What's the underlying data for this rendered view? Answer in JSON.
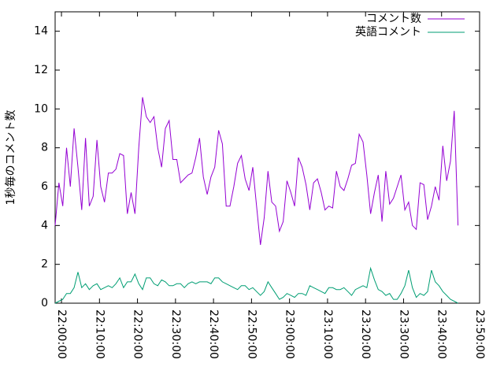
{
  "chart_data": {
    "type": "line",
    "y_label": "1秒毎のコメント数",
    "x": [
      "21:58:20",
      "21:59:20",
      "22:00:20",
      "22:01:20",
      "22:02:20",
      "22:03:20",
      "22:04:20",
      "22:05:20",
      "22:06:20",
      "22:07:20",
      "22:08:20",
      "22:09:20",
      "22:10:20",
      "22:11:20",
      "22:12:20",
      "22:13:20",
      "22:14:20",
      "22:15:20",
      "22:16:20",
      "22:17:20",
      "22:18:20",
      "22:19:20",
      "22:20:20",
      "22:21:20",
      "22:22:20",
      "22:23:20",
      "22:24:20",
      "22:25:20",
      "22:26:20",
      "22:27:20",
      "22:28:20",
      "22:29:20",
      "22:30:20",
      "22:31:20",
      "22:32:20",
      "22:33:20",
      "22:34:20",
      "22:35:20",
      "22:36:20",
      "22:37:20",
      "22:38:20",
      "22:39:20",
      "22:40:20",
      "22:41:20",
      "22:42:20",
      "22:43:20",
      "22:44:20",
      "22:45:20",
      "22:46:20",
      "22:47:20",
      "22:48:20",
      "22:49:20",
      "22:50:20",
      "22:51:20",
      "22:52:20",
      "22:53:20",
      "22:54:20",
      "22:55:20",
      "22:56:20",
      "22:57:20",
      "22:58:20",
      "22:59:20",
      "23:00:20",
      "23:01:20",
      "23:02:20",
      "23:03:20",
      "23:04:20",
      "23:05:20",
      "23:06:20",
      "23:07:20",
      "23:08:20",
      "23:09:20",
      "23:10:20",
      "23:11:20",
      "23:12:20",
      "23:13:20",
      "23:14:20",
      "23:15:20",
      "23:16:20",
      "23:17:20",
      "23:18:20",
      "23:19:20",
      "23:20:20",
      "23:21:20",
      "23:22:20",
      "23:23:20",
      "23:24:20",
      "23:25:20",
      "23:26:20",
      "23:27:20",
      "23:28:20",
      "23:29:20",
      "23:30:20",
      "23:31:20",
      "23:32:20",
      "23:33:20",
      "23:34:20",
      "23:35:20",
      "23:36:20",
      "23:37:20",
      "23:38:20",
      "23:39:20",
      "23:40:20",
      "23:41:20",
      "23:42:20",
      "23:43:20",
      "23:44:20"
    ],
    "series": [
      {
        "name": "コメント数",
        "color": "#9400d3",
        "values": [
          4,
          6.2,
          5,
          8,
          6,
          9,
          7,
          4.8,
          8.5,
          5,
          5.5,
          8.4,
          6,
          5.2,
          6.7,
          6.7,
          6.9,
          7.7,
          7.6,
          4.6,
          5.7,
          4.6,
          8,
          10.6,
          9.6,
          9.3,
          9.6,
          8,
          7,
          9,
          9.4,
          7.4,
          7.4,
          6.2,
          6.4,
          6.6,
          6.7,
          7.5,
          8.5,
          6.5,
          5.6,
          6.5,
          7,
          8.9,
          8.2,
          5,
          5,
          6,
          7.2,
          7.6,
          6.4,
          5.8,
          7,
          5,
          3,
          4.4,
          6.8,
          5.2,
          5,
          3.7,
          4.2,
          6.3,
          5.7,
          5,
          7.5,
          7,
          6.1,
          4.8,
          6.2,
          6.4,
          5.7,
          4.8,
          5,
          4.9,
          6.8,
          6,
          5.8,
          6.4,
          7.1,
          7.2,
          8.7,
          8.3,
          6.6,
          4.6,
          5.7,
          6.6,
          4.2,
          6.8,
          5.1,
          5.4,
          6,
          6.6,
          4.8,
          5.2,
          4,
          3.8,
          6.2,
          6.1,
          4.3,
          5,
          6,
          5.3,
          8.1,
          6.3,
          7.3,
          9.9,
          4
        ]
      },
      {
        "name": "英語コメント",
        "color": "#009e73",
        "values": [
          0,
          0.1,
          0.2,
          0.5,
          0.5,
          0.8,
          1.6,
          0.8,
          1,
          0.7,
          0.9,
          1,
          0.7,
          0.8,
          0.9,
          0.8,
          1,
          1.3,
          0.8,
          1.1,
          1.1,
          1.5,
          1,
          0.7,
          1.3,
          1.3,
          1,
          0.9,
          1.2,
          1.1,
          0.9,
          0.9,
          1,
          1,
          0.8,
          1,
          1.1,
          1,
          1.1,
          1.1,
          1.1,
          1,
          1.3,
          1.3,
          1.1,
          1,
          0.9,
          0.8,
          0.7,
          0.9,
          0.9,
          0.7,
          0.8,
          0.6,
          0.4,
          0.6,
          1.1,
          0.8,
          0.5,
          0.2,
          0.3,
          0.5,
          0.4,
          0.3,
          0.5,
          0.5,
          0.4,
          0.9,
          0.8,
          0.7,
          0.6,
          0.5,
          0.8,
          0.8,
          0.7,
          0.7,
          0.8,
          0.6,
          0.4,
          0.7,
          0.8,
          0.9,
          0.8,
          1.8,
          1.2,
          0.7,
          0.6,
          0.4,
          0.5,
          0.2,
          0.2,
          0.5,
          0.9,
          1.7,
          0.8,
          0.3,
          0.5,
          0.4,
          0.6,
          1.7,
          1.1,
          0.9,
          0.6,
          0.4,
          0.2,
          0.1,
          0
        ]
      }
    ],
    "xlim": [
      "21:58:20",
      "23:50:00"
    ],
    "xticks": [
      "22:00:00",
      "22:10:00",
      "22:20:00",
      "22:30:00",
      "22:40:00",
      "22:50:00",
      "23:00:00",
      "23:10:00",
      "23:20:00",
      "23:30:00",
      "23:40:00",
      "23:50:00"
    ],
    "ylim": [
      0,
      15
    ],
    "yticks": [
      0,
      2,
      4,
      6,
      8,
      10,
      12,
      14
    ],
    "legend": "top-right"
  }
}
